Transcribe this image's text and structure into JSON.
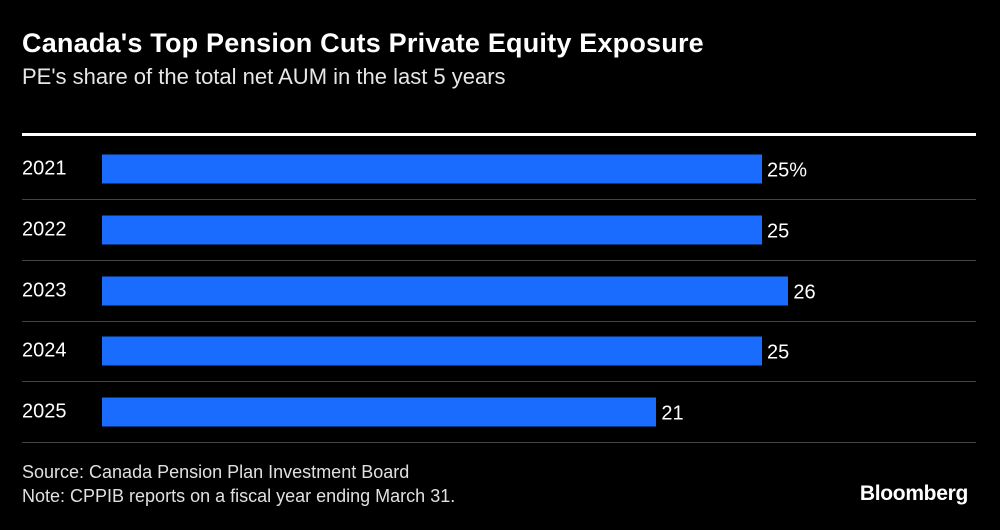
{
  "chart_data": {
    "type": "bar",
    "orientation": "horizontal",
    "title": "Canada's Top Pension Cuts Private Equity Exposure",
    "subtitle": "PE's share of the total net AUM in the last 5 years",
    "categories": [
      "2021",
      "2022",
      "2023",
      "2024",
      "2025"
    ],
    "values": [
      25,
      25,
      26,
      25,
      21
    ],
    "value_labels": [
      "25%",
      "25",
      "26",
      "25",
      "21"
    ],
    "xlim": [
      0,
      26
    ],
    "grid": false,
    "bar_color": "#1a6cff"
  },
  "footer": {
    "source": "Source: Canada Pension Plan Investment Board",
    "note": "Note: CPPIB reports on a fiscal year ending March 31.",
    "logo": "Bloomberg"
  }
}
